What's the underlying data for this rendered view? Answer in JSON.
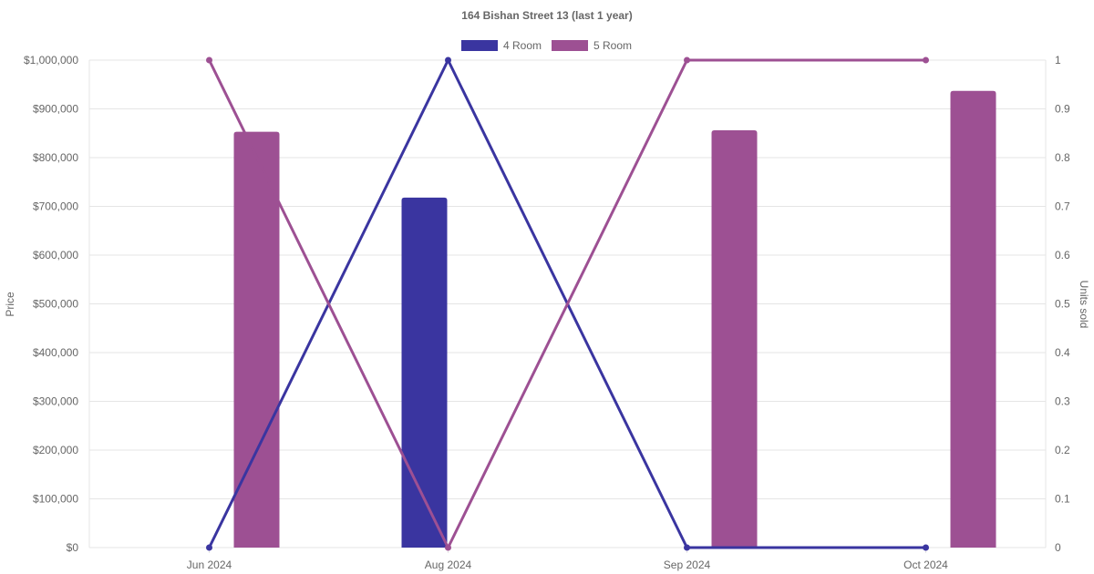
{
  "chart_data": {
    "type": "bar",
    "title": "164 Bishan Street 13 (last 1 year)",
    "categories": [
      "Jun 2024",
      "Aug 2024",
      "Sep 2024",
      "Oct 2024"
    ],
    "y_left": {
      "label": "Price",
      "ylim": [
        0,
        1000000
      ],
      "ticks": [
        "$0",
        "$100,000",
        "$200,000",
        "$300,000",
        "$400,000",
        "$500,000",
        "$600,000",
        "$700,000",
        "$800,000",
        "$900,000",
        "$1,000,000"
      ]
    },
    "y_right": {
      "label": "Units sold",
      "ylim": [
        0,
        1
      ],
      "ticks": [
        "0",
        "0.1",
        "0.2",
        "0.3",
        "0.4",
        "0.5",
        "0.6",
        "0.7",
        "0.8",
        "0.9",
        "1"
      ]
    },
    "grid": true,
    "legend_position": "top-center",
    "series": [
      {
        "name": "4 Room",
        "color": "#3a35a0",
        "price": [
          null,
          718000,
          null,
          null
        ],
        "units_sold": [
          0,
          1,
          0,
          0
        ]
      },
      {
        "name": "5 Room",
        "color": "#9d5093",
        "price": [
          853000,
          null,
          856000,
          937000
        ],
        "units_sold": [
          1,
          0,
          1,
          1
        ]
      }
    ]
  }
}
